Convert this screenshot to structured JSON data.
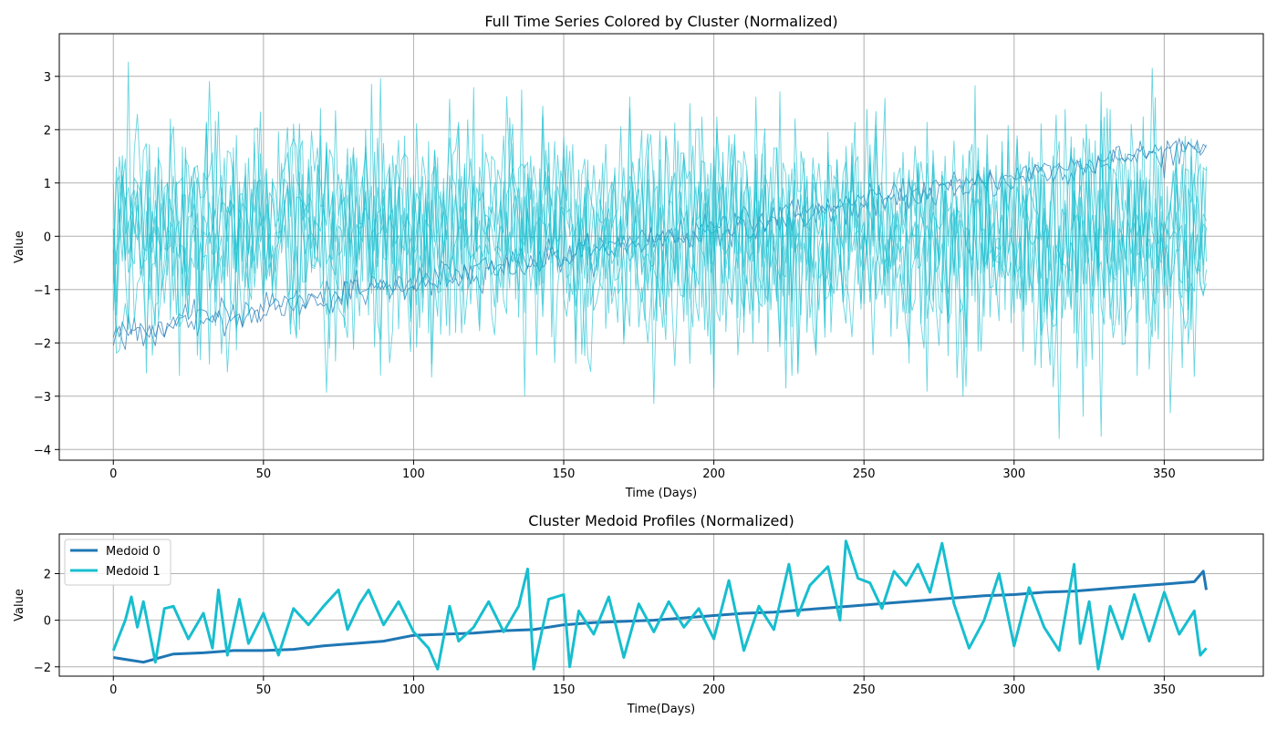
{
  "colors": {
    "cluster0": "#1f77b4",
    "cluster1": "#17becf",
    "grid": "#b0b0b0"
  },
  "chart_data": [
    {
      "type": "line",
      "title": "Full Time Series Colored by Cluster (Normalized)",
      "xlabel": "Time (Days)",
      "ylabel": "Value",
      "xlim": [
        -18,
        383
      ],
      "ylim": [
        -4.2,
        3.8
      ],
      "xticks": [
        0,
        50,
        100,
        150,
        200,
        250,
        300,
        350
      ],
      "yticks": [
        -4,
        -3,
        -2,
        -1,
        0,
        1,
        2,
        3
      ],
      "grid": true,
      "n_days": 365,
      "series": [
        {
          "cluster": 0,
          "color": "#1f77b4",
          "description": "trend from about -1.85 at day 0 to about 1.7 at day 364, small noise"
        },
        {
          "cluster": 0,
          "color": "#1f77b4",
          "description": "trend from about -1.85 at day 0 to about 1.6 at day 364, small noise"
        },
        {
          "cluster": 1,
          "color": "#17becf",
          "description": "noisy series around 0, amplitude about 1, range about -3.8 to 3.45"
        },
        {
          "cluster": 1,
          "color": "#17becf",
          "description": "noisy series around 0"
        },
        {
          "cluster": 1,
          "color": "#17becf",
          "description": "noisy series around 0"
        },
        {
          "cluster": 1,
          "color": "#17becf",
          "description": "noisy series around 0"
        },
        {
          "cluster": 1,
          "color": "#17becf",
          "description": "noisy series around 0"
        },
        {
          "cluster": 1,
          "color": "#17becf",
          "description": "noisy series around 0"
        },
        {
          "cluster": 1,
          "color": "#17becf",
          "description": "noisy series around 0"
        },
        {
          "cluster": 1,
          "color": "#17becf",
          "description": "noisy series around 0"
        }
      ]
    },
    {
      "type": "line",
      "title": "Cluster Medoid Profiles (Normalized)",
      "xlabel": "Time(Days)",
      "ylabel": "Value",
      "xlim": [
        -18,
        383
      ],
      "ylim": [
        -2.4,
        3.7
      ],
      "xticks": [
        0,
        50,
        100,
        150,
        200,
        250,
        300,
        350
      ],
      "yticks": [
        -2,
        0,
        2
      ],
      "grid": true,
      "legend": "top-left",
      "series": [
        {
          "name": "Medoid 0",
          "color": "#1f77b4",
          "x": [
            0,
            5,
            10,
            20,
            30,
            40,
            50,
            60,
            70,
            80,
            90,
            100,
            110,
            120,
            130,
            140,
            150,
            160,
            170,
            180,
            190,
            200,
            210,
            220,
            230,
            240,
            250,
            260,
            270,
            280,
            290,
            300,
            310,
            320,
            330,
            340,
            350,
            360,
            363,
            364
          ],
          "y": [
            -1.6,
            -1.7,
            -1.8,
            -1.45,
            -1.4,
            -1.3,
            -1.3,
            -1.25,
            -1.1,
            -1.0,
            -0.9,
            -0.65,
            -0.6,
            -0.55,
            -0.45,
            -0.4,
            -0.2,
            -0.1,
            -0.05,
            0.0,
            0.1,
            0.2,
            0.3,
            0.35,
            0.45,
            0.55,
            0.65,
            0.75,
            0.85,
            0.95,
            1.05,
            1.1,
            1.2,
            1.25,
            1.35,
            1.45,
            1.55,
            1.65,
            2.1,
            1.3
          ]
        },
        {
          "name": "Medoid 1",
          "color": "#17becf",
          "x": [
            0,
            4,
            6,
            8,
            10,
            12,
            14,
            17,
            20,
            25,
            30,
            33,
            35,
            38,
            42,
            45,
            50,
            55,
            60,
            65,
            70,
            75,
            78,
            82,
            85,
            90,
            95,
            100,
            105,
            108,
            112,
            115,
            120,
            125,
            130,
            135,
            138,
            140,
            145,
            150,
            152,
            155,
            160,
            165,
            170,
            175,
            180,
            185,
            190,
            195,
            200,
            205,
            210,
            215,
            220,
            225,
            228,
            232,
            238,
            242,
            244,
            248,
            252,
            256,
            260,
            264,
            268,
            272,
            276,
            280,
            285,
            290,
            295,
            300,
            305,
            310,
            315,
            320,
            322,
            325,
            328,
            332,
            336,
            340,
            345,
            350,
            355,
            360,
            362,
            364
          ],
          "y": [
            -1.3,
            0.0,
            1.0,
            -0.3,
            0.8,
            -0.5,
            -1.8,
            0.5,
            0.6,
            -0.8,
            0.3,
            -1.2,
            1.3,
            -1.5,
            0.9,
            -1.0,
            0.3,
            -1.5,
            0.5,
            -0.2,
            0.6,
            1.3,
            -0.4,
            0.7,
            1.3,
            -0.2,
            0.8,
            -0.5,
            -1.2,
            -2.1,
            0.6,
            -0.9,
            -0.3,
            0.8,
            -0.5,
            0.6,
            2.2,
            -2.1,
            0.9,
            1.1,
            -2.0,
            0.4,
            -0.6,
            1.0,
            -1.6,
            0.7,
            -0.5,
            0.8,
            -0.3,
            0.5,
            -0.8,
            1.7,
            -1.3,
            0.6,
            -0.4,
            2.4,
            0.2,
            1.5,
            2.3,
            0.0,
            3.4,
            1.8,
            1.6,
            0.5,
            2.1,
            1.5,
            2.4,
            1.2,
            3.3,
            0.7,
            -1.2,
            0.0,
            2.0,
            -1.1,
            1.4,
            -0.3,
            -1.3,
            2.4,
            -1.0,
            0.8,
            -2.1,
            0.6,
            -0.8,
            1.1,
            -0.9,
            1.2,
            -0.6,
            0.4,
            -1.5,
            -1.2
          ]
        }
      ]
    }
  ]
}
